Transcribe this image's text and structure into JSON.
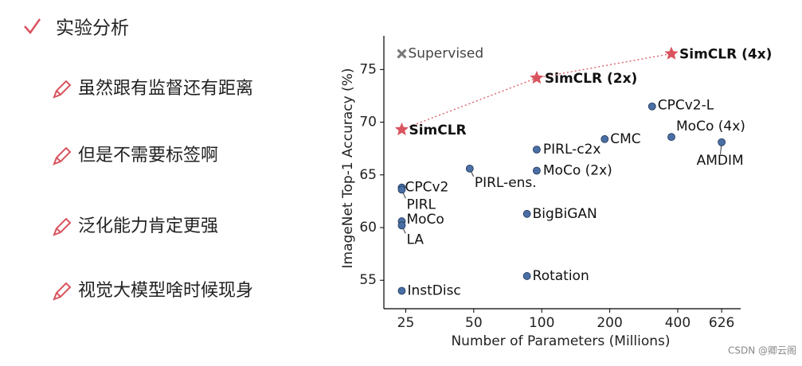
{
  "heading": "实验分析",
  "bullets": [
    "虽然跟有监督还有距离",
    "但是不需要标签啊",
    "泛化能力肯定更强",
    "视觉大模型啥时候现身"
  ],
  "watermark": "CSDN @卿云阁",
  "chart_data": {
    "type": "scatter",
    "x_label": "Number of Parameters (Millions)",
    "y_label": "ImageNet Top-1 Accuracy (%)",
    "xscale": "log",
    "xlim": [
      20,
      760
    ],
    "ylim": [
      52.3,
      78.2
    ],
    "xticks": [
      25,
      50,
      100,
      200,
      400,
      626
    ],
    "yticks": [
      55,
      60,
      65,
      70,
      75
    ],
    "series": [
      {
        "marker": "cross",
        "color": "#777777",
        "bold": false,
        "line": false,
        "labels": [
          "Supervised"
        ],
        "x": [
          24
        ],
        "values": [
          76.5
        ]
      },
      {
        "marker": "star",
        "color": "#d9545f",
        "bold": true,
        "line": true,
        "labels": [
          "SimCLR",
          "SimCLR (2x)",
          "SimCLR (4x)"
        ],
        "x": [
          24,
          95,
          375
        ],
        "values": [
          69.3,
          74.2,
          76.5
        ]
      },
      {
        "marker": "circle",
        "color": "#4a6fa5",
        "bold": false,
        "line": false,
        "labels": [
          "CPCv2-L",
          "MoCo (4x)",
          "AMDIM",
          "CMC",
          "PIRL-c2x",
          "MoCo (2x)",
          "PIRL-ens.",
          "CPCv2",
          "PIRL",
          "MoCo",
          "LA",
          "BigBiGAN",
          "Rotation",
          "InstDisc"
        ],
        "x": [
          308,
          375,
          626,
          190,
          95,
          95,
          48,
          24,
          24,
          24,
          24,
          86,
          86,
          24
        ],
        "values": [
          71.5,
          68.6,
          68.1,
          68.4,
          67.4,
          65.4,
          65.6,
          63.8,
          63.6,
          60.6,
          60.2,
          61.3,
          55.4,
          54.0
        ]
      }
    ]
  }
}
